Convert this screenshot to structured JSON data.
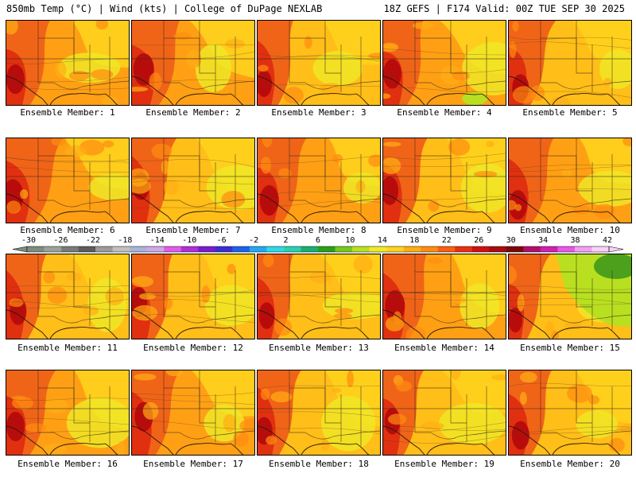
{
  "header": {
    "left": "850mb Temp (°C) | Wind (kts) | College of DuPage NEXLAB",
    "right": "18Z GEFS | F174 Valid: 00Z TUE SEP 30 2025"
  },
  "members": [
    {
      "label": "Ensemble Member: 1",
      "heat": 0.55
    },
    {
      "label": "Ensemble Member: 2",
      "heat": 0.7
    },
    {
      "label": "Ensemble Member: 3",
      "heat": 0.4
    },
    {
      "label": "Ensemble Member: 4",
      "heat": 0.55
    },
    {
      "label": "Ensemble Member: 5",
      "heat": 0.45
    },
    {
      "label": "Ensemble Member: 6",
      "heat": 0.75
    },
    {
      "label": "Ensemble Member: 7",
      "heat": 0.45
    },
    {
      "label": "Ensemble Member: 8",
      "heat": 0.6
    },
    {
      "label": "Ensemble Member: 9",
      "heat": 0.5
    },
    {
      "label": "Ensemble Member: 10",
      "heat": 0.55
    },
    {
      "label": "Ensemble Member: 11",
      "heat": 0.45
    },
    {
      "label": "Ensemble Member: 12",
      "heat": 0.5
    },
    {
      "label": "Ensemble Member: 13",
      "heat": 0.4
    },
    {
      "label": "Ensemble Member: 14",
      "heat": 0.65
    },
    {
      "label": "Ensemble Member: 15",
      "heat": 0.3
    },
    {
      "label": "Ensemble Member: 16",
      "heat": 0.55
    },
    {
      "label": "Ensemble Member: 17",
      "heat": 0.55
    },
    {
      "label": "Ensemble Member: 18",
      "heat": 0.45
    },
    {
      "label": "Ensemble Member: 19",
      "heat": 0.4
    },
    {
      "label": "Ensemble Member: 20",
      "heat": 0.5
    }
  ],
  "color_scale": {
    "labels": [
      "-30",
      "-26",
      "-22",
      "-18",
      "-14",
      "-10",
      "-6",
      "-2",
      "2",
      "6",
      "10",
      "14",
      "18",
      "22",
      "26",
      "30",
      "34",
      "38",
      "42"
    ],
    "colors": [
      "#7f8c7f",
      "#9aa39a",
      "#7a7a7a",
      "#5c5c5c",
      "#9b9b9b",
      "#c0c0c0",
      "#a8b4d8",
      "#cfa7e8",
      "#e05ce8",
      "#b030d8",
      "#7a1ccf",
      "#3b2fd0",
      "#1d62e8",
      "#24a8f0",
      "#30d8e8",
      "#2ad0b0",
      "#18b070",
      "#2aa018",
      "#78c81c",
      "#b8e020",
      "#ecec28",
      "#ffd21c",
      "#ffae14",
      "#ff8c10",
      "#f86010",
      "#e83010",
      "#d01010",
      "#a80c0c",
      "#7c0808",
      "#b0106c",
      "#d020b0",
      "#e858e8",
      "#f0a0f0",
      "#f8d0f8"
    ]
  }
}
